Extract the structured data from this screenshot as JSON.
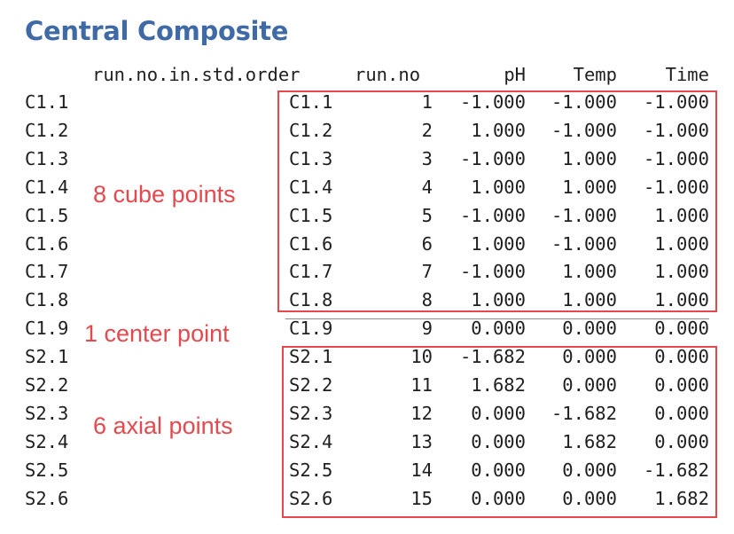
{
  "title": "Central Composite",
  "headers": {
    "std_order": "run.no.in.std.order",
    "run_no": "run.no",
    "ph": "pH",
    "temp": "Temp",
    "time": "Time"
  },
  "rows": [
    {
      "label": "C1.1",
      "name": "C1.1",
      "run_no": "1",
      "ph": "-1.000",
      "temp": "-1.000",
      "time": "-1.000"
    },
    {
      "label": "C1.2",
      "name": "C1.2",
      "run_no": "2",
      "ph": "1.000",
      "temp": "-1.000",
      "time": "-1.000"
    },
    {
      "label": "C1.3",
      "name": "C1.3",
      "run_no": "3",
      "ph": "-1.000",
      "temp": "1.000",
      "time": "-1.000"
    },
    {
      "label": "C1.4",
      "name": "C1.4",
      "run_no": "4",
      "ph": "1.000",
      "temp": "1.000",
      "time": "-1.000"
    },
    {
      "label": "C1.5",
      "name": "C1.5",
      "run_no": "5",
      "ph": "-1.000",
      "temp": "-1.000",
      "time": "1.000"
    },
    {
      "label": "C1.6",
      "name": "C1.6",
      "run_no": "6",
      "ph": "1.000",
      "temp": "-1.000",
      "time": "1.000"
    },
    {
      "label": "C1.7",
      "name": "C1.7",
      "run_no": "7",
      "ph": "-1.000",
      "temp": "1.000",
      "time": "1.000"
    },
    {
      "label": "C1.8",
      "name": "C1.8",
      "run_no": "8",
      "ph": "1.000",
      "temp": "1.000",
      "time": "1.000"
    },
    {
      "label": "C1.9",
      "name": "C1.9",
      "run_no": "9",
      "ph": "0.000",
      "temp": "0.000",
      "time": "0.000"
    },
    {
      "label": "S2.1",
      "name": "S2.1",
      "run_no": "10",
      "ph": "-1.682",
      "temp": "0.000",
      "time": "0.000"
    },
    {
      "label": "S2.2",
      "name": "S2.2",
      "run_no": "11",
      "ph": "1.682",
      "temp": "0.000",
      "time": "0.000"
    },
    {
      "label": "S2.3",
      "name": "S2.3",
      "run_no": "12",
      "ph": "0.000",
      "temp": "-1.682",
      "time": "0.000"
    },
    {
      "label": "S2.4",
      "name": "S2.4",
      "run_no": "13",
      "ph": "0.000",
      "temp": "1.682",
      "time": "0.000"
    },
    {
      "label": "S2.5",
      "name": "S2.5",
      "run_no": "14",
      "ph": "0.000",
      "temp": "0.000",
      "time": "-1.682"
    },
    {
      "label": "S2.6",
      "name": "S2.6",
      "run_no": "15",
      "ph": "0.000",
      "temp": "0.000",
      "time": "1.682"
    }
  ],
  "annotations": {
    "cube": "8 cube points",
    "center": "1 center point",
    "axial": "6 axial points"
  },
  "colors": {
    "title": "#3f6aa6",
    "annotation": "#e5484d",
    "text": "#1f1f1f"
  }
}
